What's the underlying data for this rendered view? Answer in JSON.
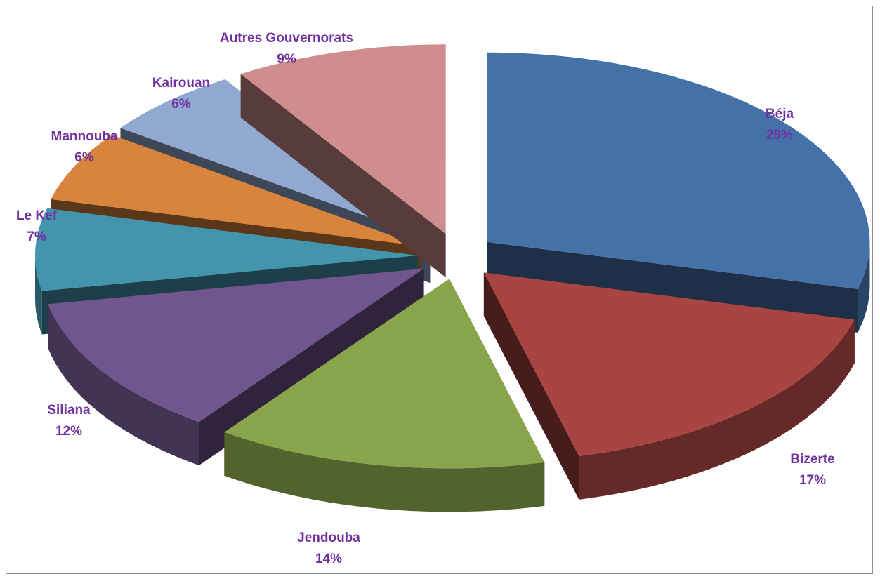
{
  "chart_data": {
    "type": "pie",
    "style": "3d-exploded",
    "title": "",
    "categories": [
      "Béja",
      "Bizerte",
      "Jendouba",
      "Siliana",
      "Le Kef",
      "Mannouba",
      "Kairouan",
      "Autres Gouvernorats"
    ],
    "values": [
      29,
      17,
      14,
      12,
      7,
      6,
      6,
      9
    ],
    "labels": [
      "29%",
      "17%",
      "14%",
      "12%",
      "7%",
      "6%",
      "6%",
      "9%"
    ],
    "colors": [
      "#4472a8",
      "#a84442",
      "#88a54c",
      "#70558e",
      "#4295ad",
      "#d9843c",
      "#91a8d0",
      "#cf8e8d"
    ],
    "label_color": "#7030a0",
    "legend": "none",
    "data_labels": "category-and-percent"
  }
}
